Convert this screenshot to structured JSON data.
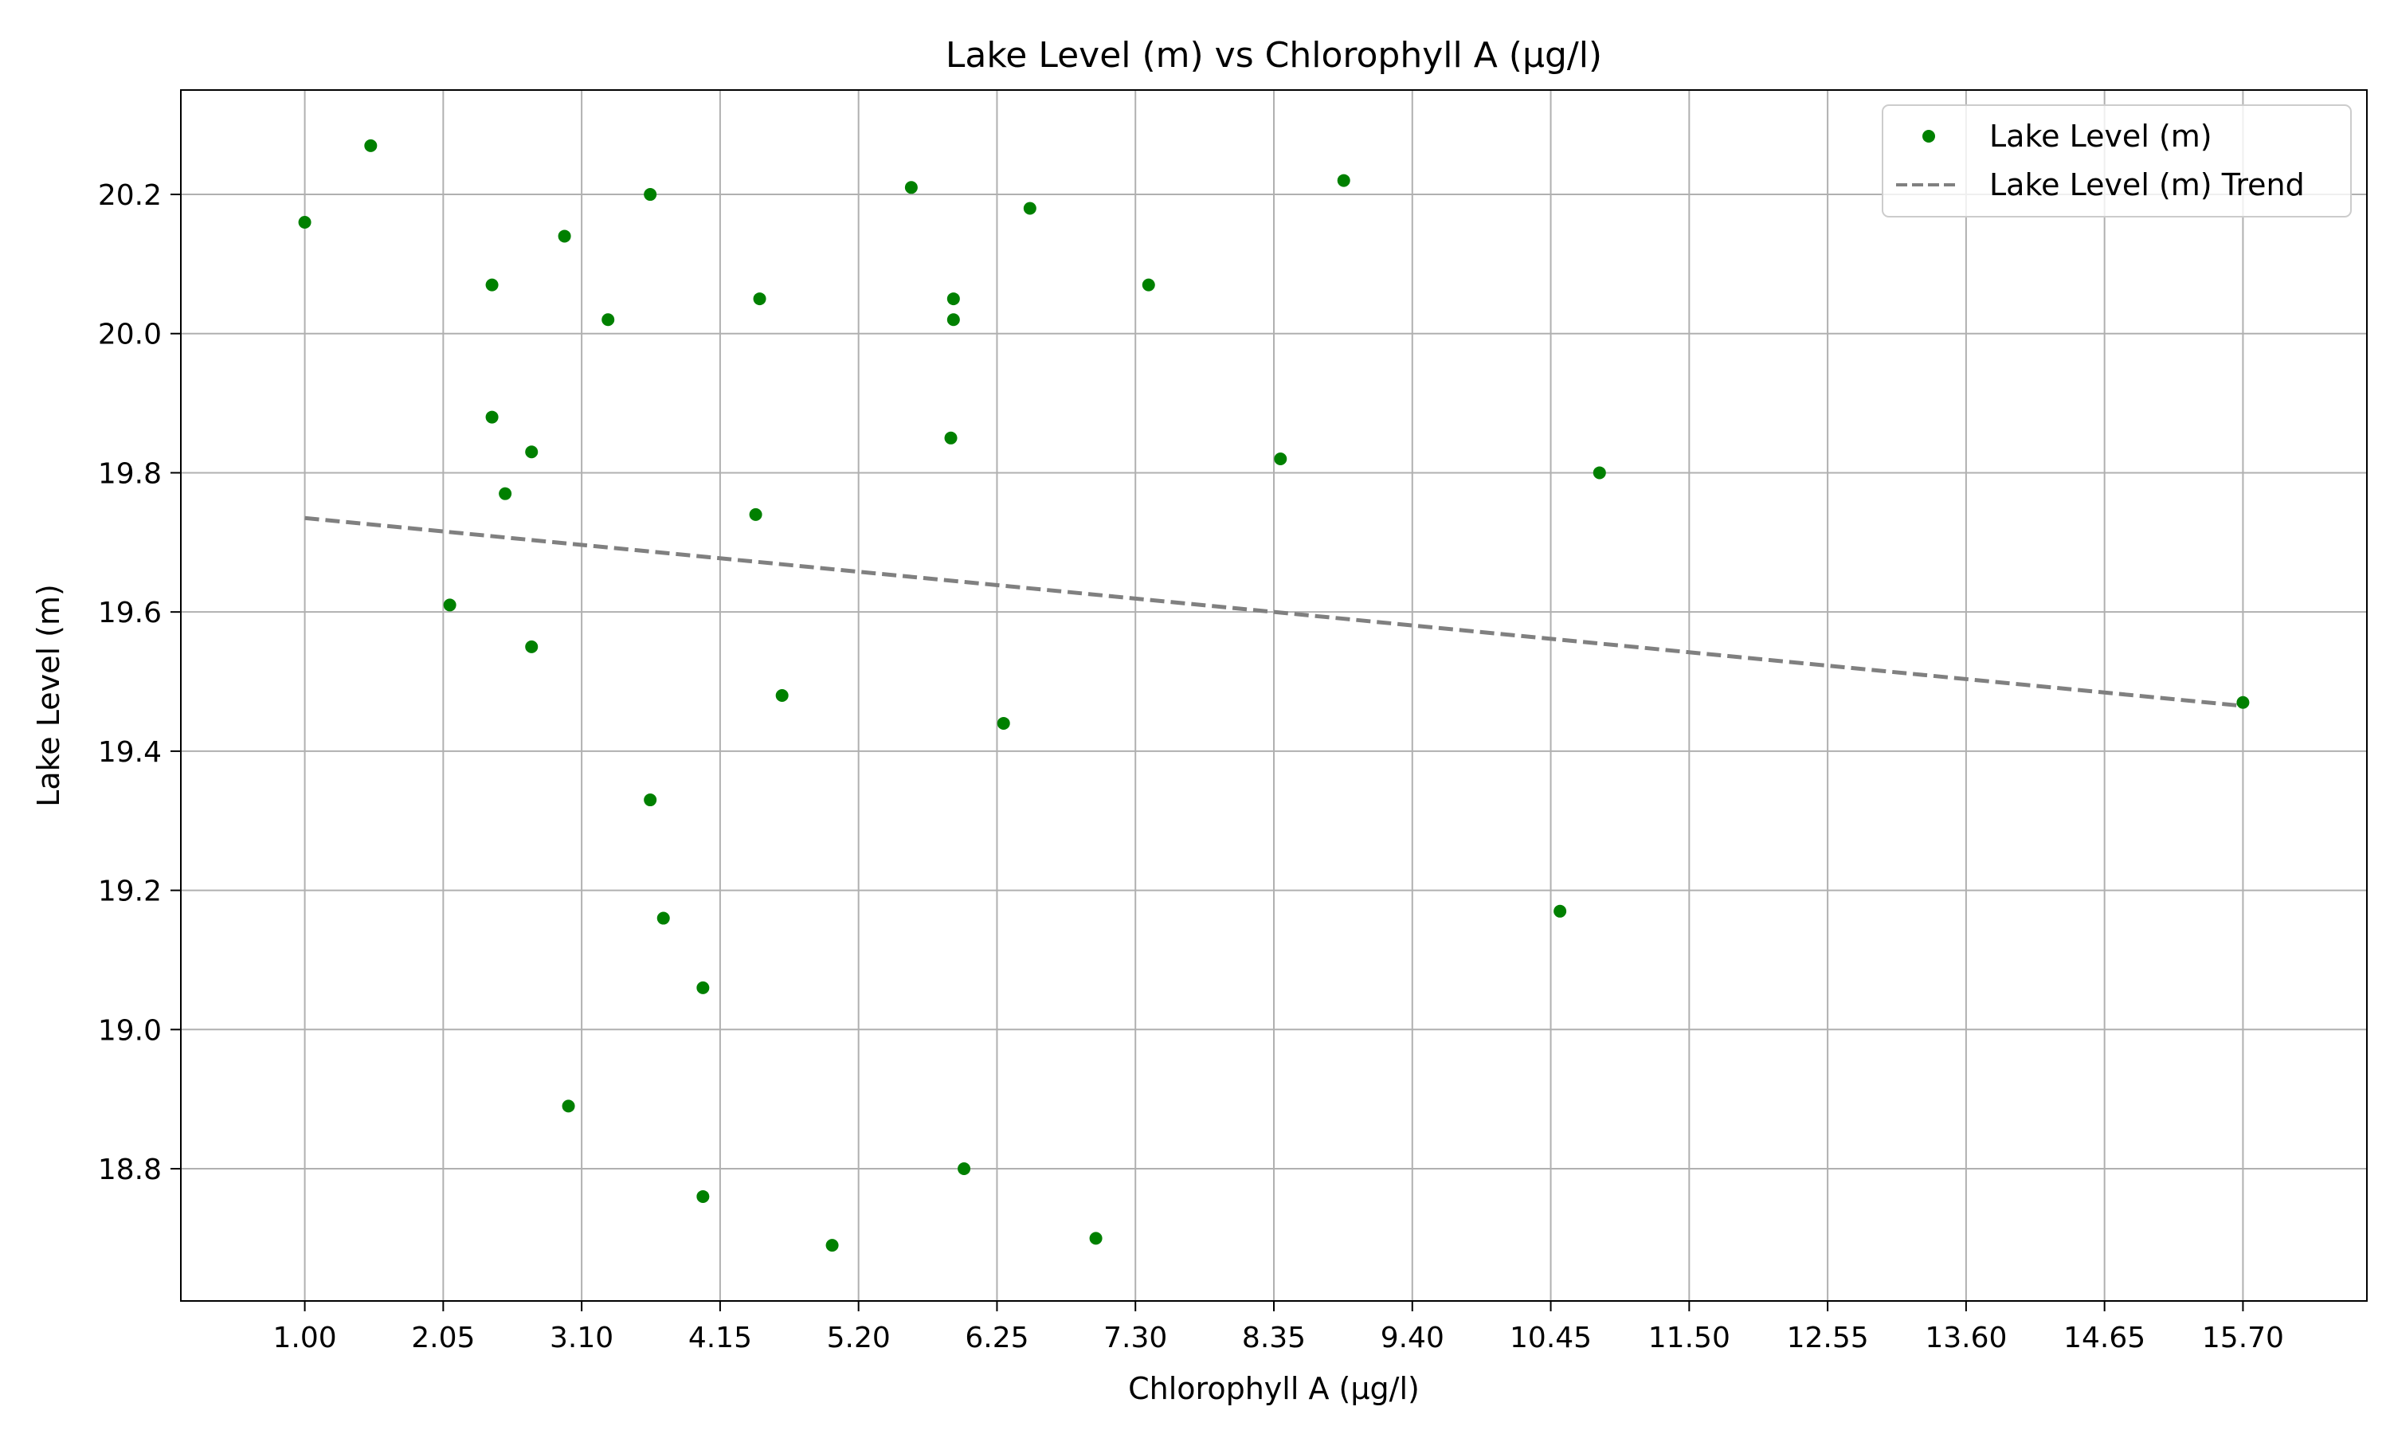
{
  "chart_data": {
    "type": "scatter",
    "title": "Lake Level (m) vs Chlorophyll A (µg/l)",
    "xlabel": "Chlorophyll A (µg/l)",
    "ylabel": "Lake Level (m)",
    "xlim": [
      0.06,
      16.64
    ],
    "ylim": [
      18.61,
      20.35
    ],
    "grid": true,
    "legend_position": "upper right",
    "x_ticks": [
      "1.00",
      "2.05",
      "3.10",
      "4.15",
      "5.20",
      "6.25",
      "7.30",
      "8.35",
      "9.40",
      "10.45",
      "11.50",
      "12.55",
      "13.60",
      "14.65",
      "15.70"
    ],
    "y_ticks": [
      "18.8",
      "19.0",
      "19.2",
      "19.4",
      "19.6",
      "19.8",
      "20.0",
      "20.2"
    ],
    "series": [
      {
        "name": "Lake Level (m)",
        "kind": "scatter",
        "color": "#008000",
        "points": [
          {
            "x": 1.0,
            "y": 20.16
          },
          {
            "x": 1.5,
            "y": 20.27
          },
          {
            "x": 2.1,
            "y": 19.61
          },
          {
            "x": 2.42,
            "y": 20.07
          },
          {
            "x": 2.42,
            "y": 19.88
          },
          {
            "x": 2.52,
            "y": 19.77
          },
          {
            "x": 2.72,
            "y": 19.83
          },
          {
            "x": 2.72,
            "y": 19.55
          },
          {
            "x": 2.97,
            "y": 20.14
          },
          {
            "x": 3.0,
            "y": 18.89
          },
          {
            "x": 3.3,
            "y": 20.02
          },
          {
            "x": 3.62,
            "y": 20.2
          },
          {
            "x": 3.62,
            "y": 19.33
          },
          {
            "x": 3.72,
            "y": 19.16
          },
          {
            "x": 4.02,
            "y": 19.06
          },
          {
            "x": 4.02,
            "y": 18.76
          },
          {
            "x": 4.42,
            "y": 19.74
          },
          {
            "x": 4.45,
            "y": 20.05
          },
          {
            "x": 4.62,
            "y": 19.48
          },
          {
            "x": 5.0,
            "y": 18.69
          },
          {
            "x": 5.6,
            "y": 20.21
          },
          {
            "x": 5.9,
            "y": 19.85
          },
          {
            "x": 5.92,
            "y": 20.05
          },
          {
            "x": 5.92,
            "y": 20.02
          },
          {
            "x": 6.0,
            "y": 18.8
          },
          {
            "x": 6.3,
            "y": 19.44
          },
          {
            "x": 6.5,
            "y": 20.18
          },
          {
            "x": 7.0,
            "y": 18.7
          },
          {
            "x": 7.4,
            "y": 20.07
          },
          {
            "x": 8.4,
            "y": 19.82
          },
          {
            "x": 8.88,
            "y": 20.22
          },
          {
            "x": 10.52,
            "y": 19.17
          },
          {
            "x": 10.82,
            "y": 19.8
          },
          {
            "x": 15.7,
            "y": 19.47
          }
        ]
      },
      {
        "name": "Lake Level (m) Trend",
        "kind": "line",
        "dash": "dashed",
        "color": "#808080",
        "points": [
          {
            "x": 1.0,
            "y": 19.735
          },
          {
            "x": 15.7,
            "y": 19.465
          }
        ]
      }
    ]
  }
}
